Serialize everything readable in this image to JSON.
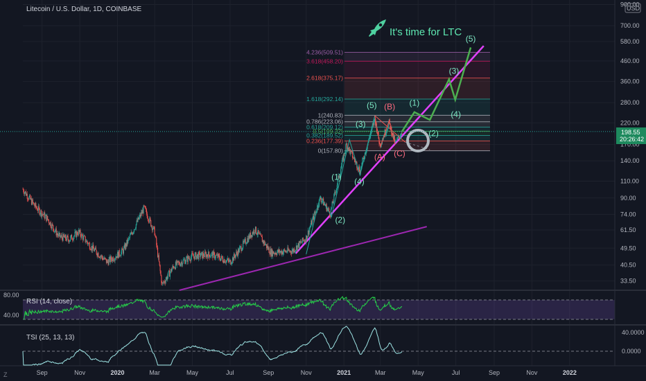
{
  "header": {
    "title": "Litecoin / U.S. Dollar, 1D, COINBASE",
    "currency_label": "USD"
  },
  "annotation": {
    "text": "It's time for LTC",
    "icon": "rocket-icon"
  },
  "price_label": {
    "value": "198.55",
    "countdown": "20:26:42"
  },
  "colors": {
    "background": "#131722",
    "up": "#26a69a",
    "down": "#ef5350",
    "trendline": "#e040fb",
    "projection": "#4caf50",
    "rsi_line": "#26d049",
    "tsi_line": "#9ee5e5",
    "circle": "#b0b8c0"
  },
  "price_axis": {
    "scale": "log",
    "ticks": [
      "900.00",
      "700.00",
      "580.00",
      "460.00",
      "360.00",
      "280.00",
      "220.00",
      "170.00",
      "140.00",
      "110.00",
      "90.00",
      "74.00",
      "61.50",
      "49.50",
      "40.50",
      "33.50"
    ]
  },
  "time_axis": {
    "labels": [
      {
        "text": "Sep",
        "bold": false
      },
      {
        "text": "Nov",
        "bold": false
      },
      {
        "text": "2020",
        "bold": true
      },
      {
        "text": "Mar",
        "bold": false
      },
      {
        "text": "May",
        "bold": false
      },
      {
        "text": "Jul",
        "bold": false
      },
      {
        "text": "Sep",
        "bold": false
      },
      {
        "text": "Nov",
        "bold": false
      },
      {
        "text": "2021",
        "bold": true
      },
      {
        "text": "Mar",
        "bold": false
      },
      {
        "text": "May",
        "bold": false
      },
      {
        "text": "Jul",
        "bold": false
      },
      {
        "text": "Sep",
        "bold": false
      },
      {
        "text": "Nov",
        "bold": false
      },
      {
        "text": "2022",
        "bold": true
      }
    ]
  },
  "fib_levels": [
    {
      "label": "4.236(509.51)",
      "price": 509.51,
      "color": "#9c5fa8"
    },
    {
      "label": "3.618(458.20)",
      "price": 458.2,
      "color": "#c2185b"
    },
    {
      "label": "2.618(375.17)",
      "price": 375.17,
      "color": "#ef5350"
    },
    {
      "label": "1.618(292.14)",
      "price": 292.14,
      "color": "#26a69a"
    },
    {
      "label": "1(240.83)",
      "price": 240.83,
      "color": "#b2b5be"
    },
    {
      "label": "0.786(223.06)",
      "price": 223.06,
      "color": "#b2b5be"
    },
    {
      "label": "0.618(209.12)",
      "price": 209.12,
      "color": "#26a69a"
    },
    {
      "label": "0.5(199.32)",
      "price": 199.32,
      "color": "#4caf50"
    },
    {
      "label": "0.382(189.52)",
      "price": 189.52,
      "color": "#26a69a"
    },
    {
      "label": "0.236(177.39)",
      "price": 177.39,
      "color": "#ef5350"
    },
    {
      "label": "0(157.80)",
      "price": 157.8,
      "color": "#b2b5be"
    }
  ],
  "waves": {
    "impulse_labels": [
      {
        "text": "(1)",
        "date": "2020-12-20",
        "price": 112
      },
      {
        "text": "(2)",
        "date": "2020-12-26",
        "price": 67
      },
      {
        "text": "(3)",
        "date": "2021-01-28",
        "price": 210
      },
      {
        "text": "(4)",
        "date": "2021-01-26",
        "price": 106
      },
      {
        "text": "(5)",
        "date": "2021-02-15",
        "price": 262
      }
    ],
    "corrective_labels": [
      {
        "text": "(A)",
        "date": "2021-02-28",
        "price": 142
      },
      {
        "text": "(B)",
        "date": "2021-03-16",
        "price": 258
      },
      {
        "text": "(C)",
        "date": "2021-04-01",
        "price": 148
      }
    ],
    "projection_labels": [
      {
        "text": "(1)",
        "date": "2021-04-25",
        "price": 270
      },
      {
        "text": "(2)",
        "date": "2021-05-26",
        "price": 188
      },
      {
        "text": "(3)",
        "date": "2021-06-28",
        "price": 395
      },
      {
        "text": "(4)",
        "date": "2021-07-01",
        "price": 236
      },
      {
        "text": "(5)",
        "date": "2021-07-25",
        "price": 580
      }
    ]
  },
  "rsi": {
    "label": "RSI (14, close)",
    "ticks": [
      "80.00",
      "40.00"
    ],
    "upper": 70,
    "lower": 30
  },
  "tsi": {
    "label": "TSI (25, 13, 13)",
    "ticks": [
      "40.0000",
      "0.0000"
    ]
  },
  "chart_data": {
    "type": "candlestick",
    "title": "Litecoin / U.S. Dollar, 1D, COINBASE",
    "x_range": [
      "2019-08-01",
      "2022-03-15"
    ],
    "y_range": [
      30,
      950
    ],
    "y_scale": "log",
    "price_path": [
      {
        "date": "2019-08-01",
        "price": 100
      },
      {
        "date": "2019-08-20",
        "price": 82
      },
      {
        "date": "2019-09-10",
        "price": 70
      },
      {
        "date": "2019-09-28",
        "price": 57
      },
      {
        "date": "2019-10-15",
        "price": 55
      },
      {
        "date": "2019-10-30",
        "price": 60
      },
      {
        "date": "2019-11-20",
        "price": 50
      },
      {
        "date": "2019-12-15",
        "price": 42
      },
      {
        "date": "2020-01-10",
        "price": 48
      },
      {
        "date": "2020-02-13",
        "price": 80
      },
      {
        "date": "2020-03-01",
        "price": 60
      },
      {
        "date": "2020-03-13",
        "price": 32
      },
      {
        "date": "2020-04-01",
        "price": 40
      },
      {
        "date": "2020-05-01",
        "price": 45
      },
      {
        "date": "2020-06-01",
        "price": 46
      },
      {
        "date": "2020-07-01",
        "price": 42
      },
      {
        "date": "2020-08-10",
        "price": 62
      },
      {
        "date": "2020-09-05",
        "price": 47
      },
      {
        "date": "2020-10-10",
        "price": 48
      },
      {
        "date": "2020-11-01",
        "price": 56
      },
      {
        "date": "2020-11-24",
        "price": 90
      },
      {
        "date": "2020-12-10",
        "price": 75
      },
      {
        "date": "2021-01-05",
        "price": 170
      },
      {
        "date": "2021-01-27",
        "price": 125
      },
      {
        "date": "2021-02-20",
        "price": 230
      },
      {
        "date": "2021-02-28",
        "price": 170
      },
      {
        "date": "2021-03-15",
        "price": 220
      },
      {
        "date": "2021-03-25",
        "price": 172
      },
      {
        "date": "2021-04-05",
        "price": 198.55
      }
    ],
    "projection_path": [
      {
        "date": "2021-04-05",
        "price": 198.55
      },
      {
        "date": "2021-04-25",
        "price": 250
      },
      {
        "date": "2021-05-20",
        "price": 228
      },
      {
        "date": "2021-06-20",
        "price": 370
      },
      {
        "date": "2021-06-30",
        "price": 290
      },
      {
        "date": "2021-07-25",
        "price": 540
      }
    ],
    "trendlines": [
      {
        "name": "",
        "from": {
          "date": "2020-10-15",
          "price": 46.5
        },
        "to": {
          "date": "2021-08-15",
          "price": 550
        },
        "color": "#e040fb"
      },
      {
        "name": "",
        "from": {
          "date": "2020-04-10",
          "price": 30
        },
        "to": {
          "date": "2021-05-15",
          "price": 64
        },
        "color": "#9c27b0"
      },
      {
        "name": "",
        "from": {
          "date": "2021-02-20",
          "price": 240
        },
        "to": {
          "date": "2021-04-10",
          "price": 175
        },
        "color": "#ef5350"
      }
    ],
    "current_price": 198.55,
    "rsi_range": [
      0,
      100
    ],
    "tsi_range": [
      -40,
      60
    ]
  }
}
